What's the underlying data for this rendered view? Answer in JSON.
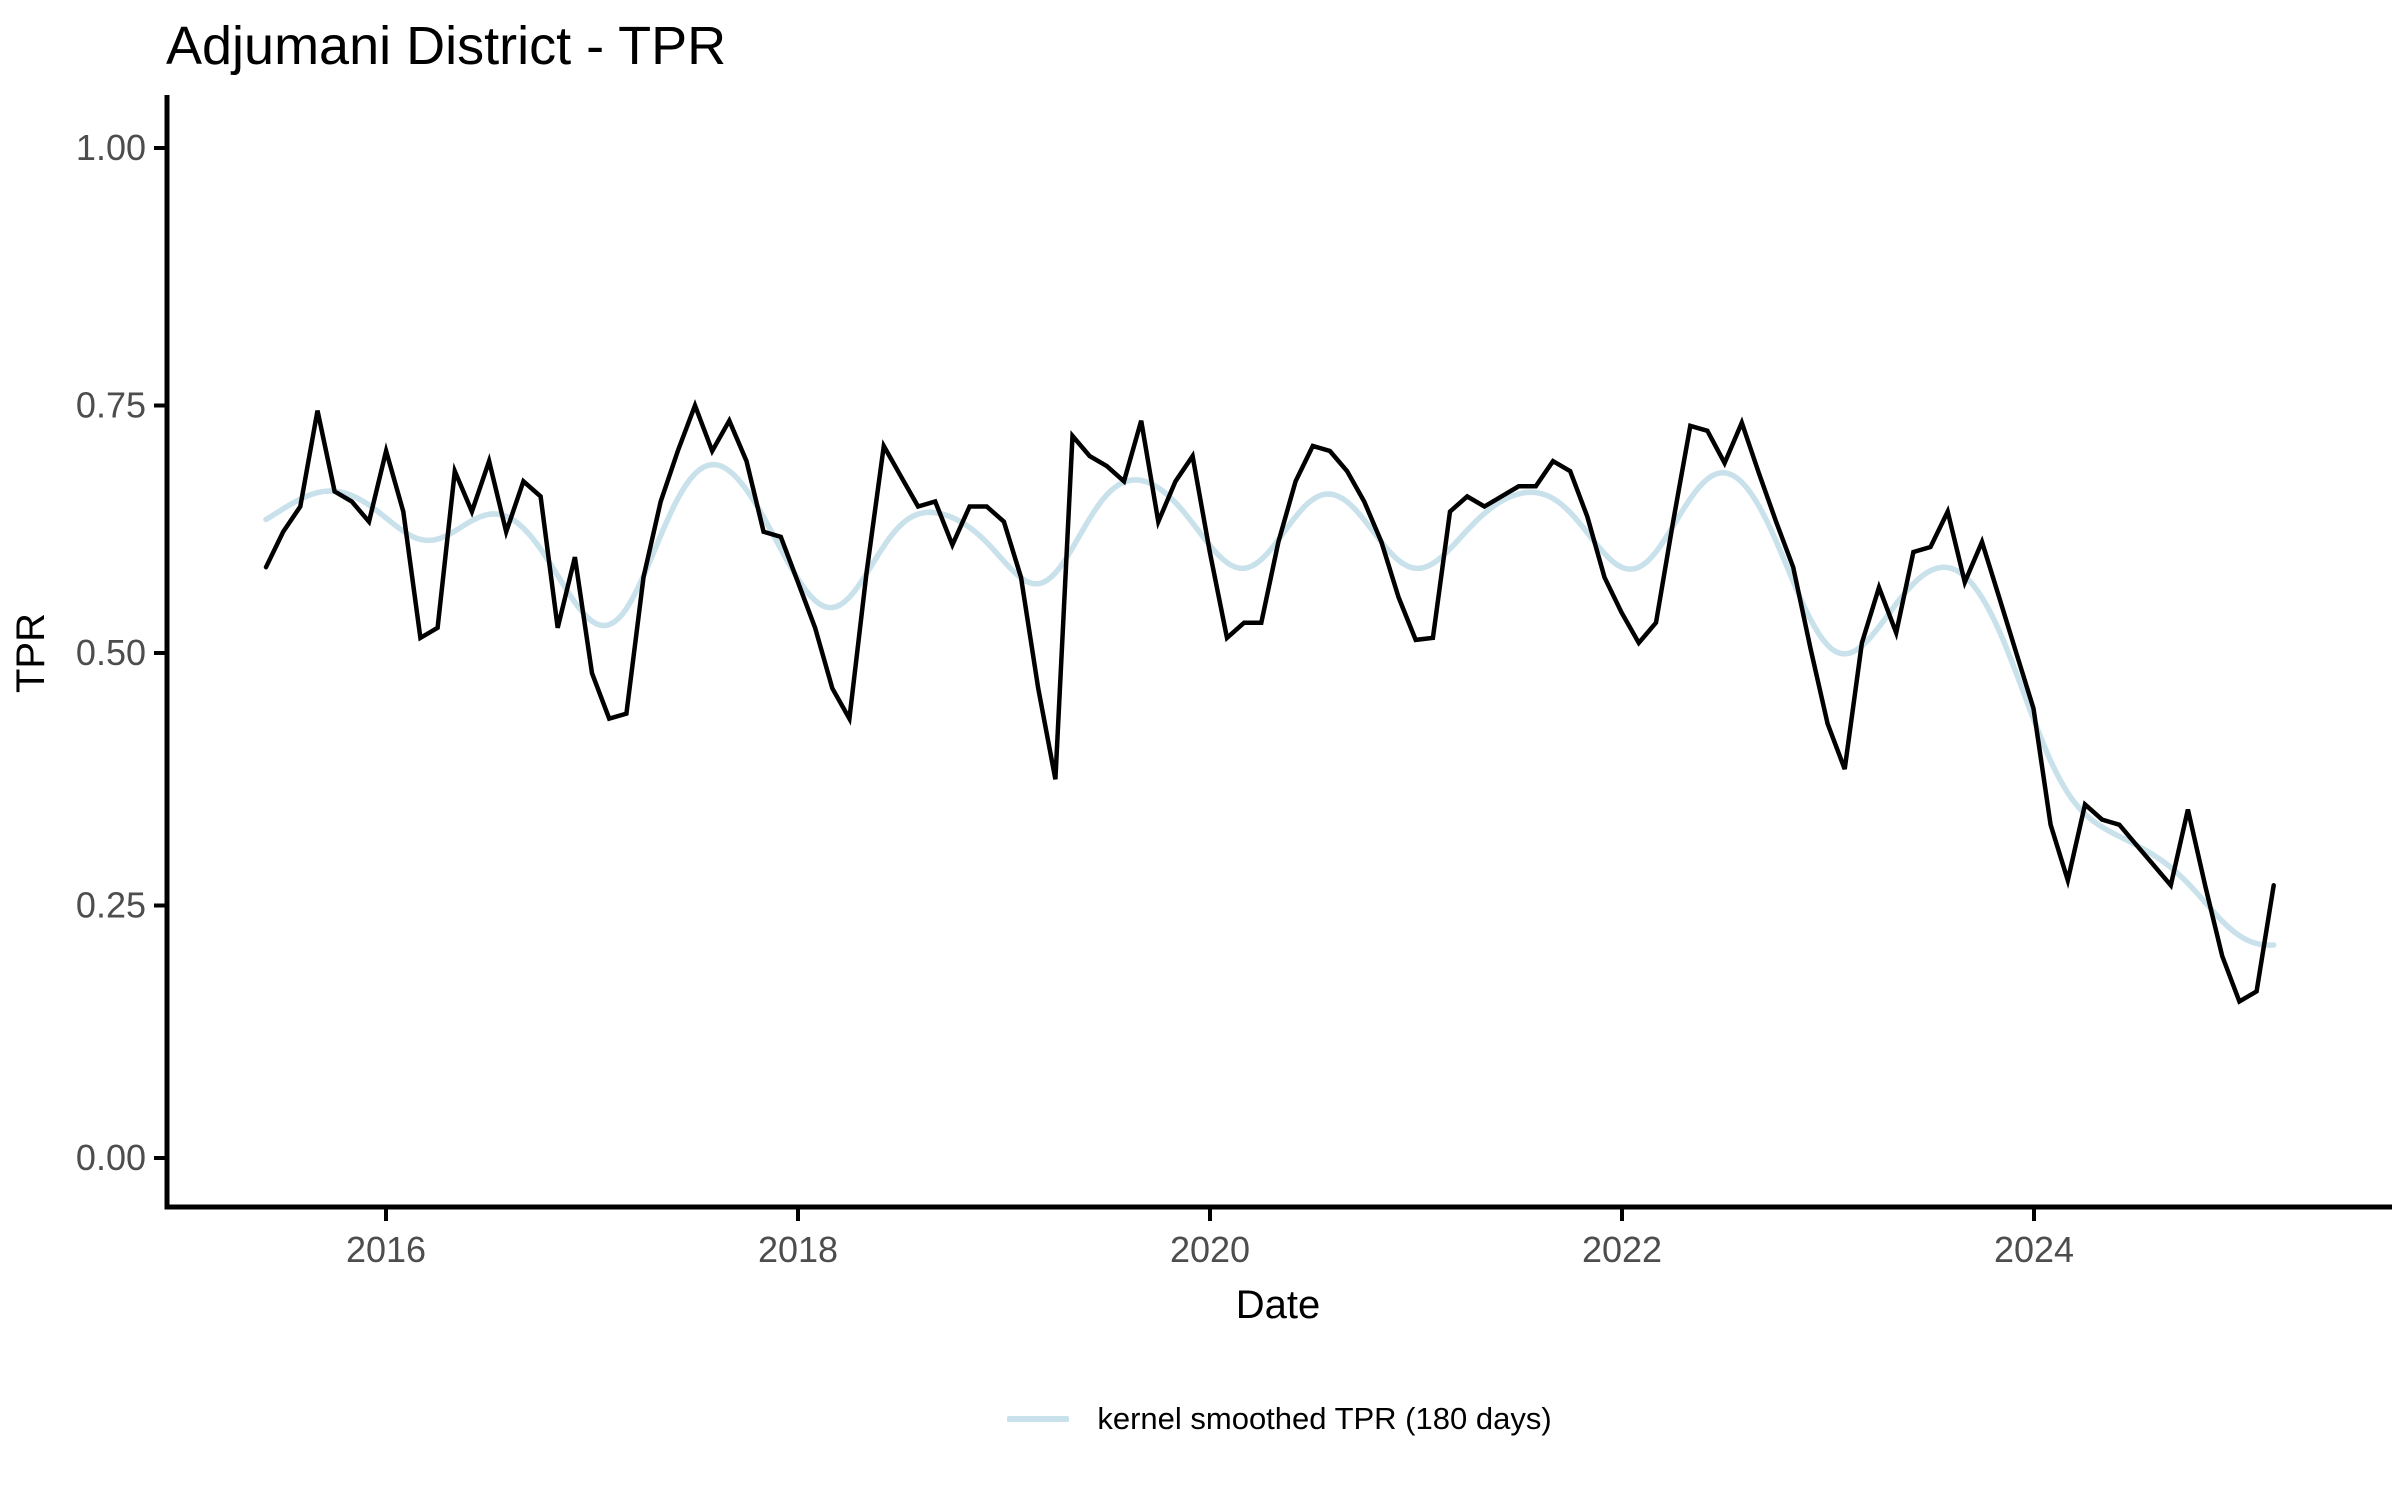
{
  "title": "Adjumani District - TPR",
  "x_axis": {
    "label": "Date",
    "ticks": [
      "2016",
      "2018",
      "2020",
      "2022",
      "2024"
    ]
  },
  "y_axis": {
    "label": "TPR",
    "ticks": [
      "1.00",
      "0.75",
      "0.50",
      "0.25",
      "0.00"
    ]
  },
  "legend": {
    "label": "kernel smoothed TPR (180 days)",
    "color": "#c8e1eb"
  },
  "chart_data": {
    "type": "line",
    "title": "Adjumani District - TPR",
    "xlabel": "Date",
    "ylabel": "TPR",
    "ylim": [
      0.0,
      1.0
    ],
    "y_ticks": [
      0.0,
      0.25,
      0.5,
      0.75,
      1.0
    ],
    "x_tick_years": [
      2016,
      2018,
      2020,
      2022,
      2024
    ],
    "x_range": {
      "start": "2015-06",
      "end": "2025-03",
      "frequency": "monthly"
    },
    "legend_position": "bottom",
    "grid": false,
    "series": [
      {
        "name": "TPR",
        "kind": "raw monthly TPR",
        "color": "#000000",
        "values": [
          0.585,
          0.62,
          0.645,
          0.74,
          0.66,
          0.65,
          0.63,
          0.7,
          0.64,
          0.515,
          0.525,
          0.68,
          0.64,
          0.69,
          0.62,
          0.67,
          0.655,
          0.525,
          0.595,
          0.48,
          0.435,
          0.44,
          0.575,
          0.65,
          0.7,
          0.745,
          0.7,
          0.73,
          0.69,
          0.62,
          0.615,
          0.57,
          0.525,
          0.465,
          0.435,
          0.58,
          0.705,
          0.675,
          0.645,
          0.65,
          0.607,
          0.645,
          0.645,
          0.63,
          0.575,
          0.465,
          0.375,
          0.715,
          0.695,
          0.685,
          0.67,
          0.73,
          0.63,
          0.67,
          0.695,
          0.6,
          0.515,
          0.53,
          0.53,
          0.61,
          0.67,
          0.705,
          0.7,
          0.68,
          0.65,
          0.61,
          0.555,
          0.513,
          0.515,
          0.64,
          0.655,
          0.645,
          0.655,
          0.665,
          0.665,
          0.69,
          0.68,
          0.635,
          0.575,
          0.54,
          0.51,
          0.53,
          0.63,
          0.725,
          0.72,
          0.688,
          0.728,
          0.678,
          0.63,
          0.585,
          0.505,
          0.43,
          0.385,
          0.51,
          0.565,
          0.52,
          0.6,
          0.605,
          0.64,
          0.57,
          0.61,
          0.555,
          0.5,
          0.445,
          0.33,
          0.275,
          0.35,
          0.335,
          0.33,
          0.31,
          0.29,
          0.27,
          0.345,
          0.27,
          0.2,
          0.155,
          0.165,
          0.27
        ]
      },
      {
        "name": "kernel smoothed TPR (180 days)",
        "kind": "kernel_smoothed",
        "derived_from": "TPR",
        "bandwidth_days": 180,
        "sigma_months": 2.2,
        "color": "#c8e1eb"
      }
    ]
  }
}
